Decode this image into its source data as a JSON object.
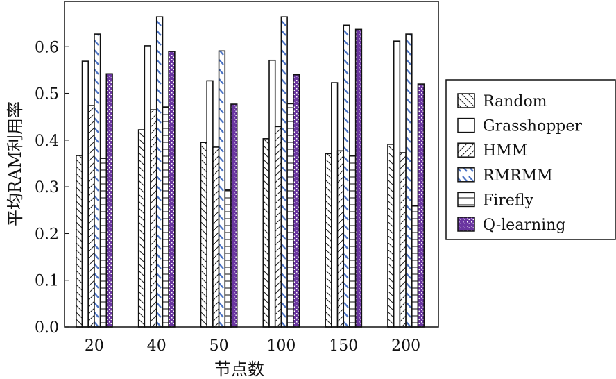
{
  "chart_data": {
    "type": "bar",
    "title": "",
    "xlabel": "节点数",
    "ylabel": "平均RAM利用率",
    "categories": [
      "20",
      "40",
      "50",
      "100",
      "150",
      "200"
    ],
    "ylim": [
      0,
      0.697
    ],
    "yticks": [
      "0.0",
      "0.1",
      "0.2",
      "0.3",
      "0.4",
      "0.5",
      "0.6"
    ],
    "grid": false,
    "legend_position": "right-outside",
    "series": [
      {
        "name": "Random",
        "pattern": "back-diagonal",
        "color": "#ffffff",
        "values": [
          0.367,
          0.422,
          0.395,
          0.403,
          0.371,
          0.391
        ]
      },
      {
        "name": "Grasshopper",
        "pattern": "none",
        "color": "#ffffff",
        "values": [
          0.569,
          0.602,
          0.527,
          0.571,
          0.523,
          0.612
        ]
      },
      {
        "name": "HMM",
        "pattern": "forward-diagonal",
        "color": "#ffffff",
        "values": [
          0.474,
          0.465,
          0.385,
          0.429,
          0.377,
          0.373
        ]
      },
      {
        "name": "RMRMM",
        "pattern": "blue-dashes",
        "color": "#4a72c4",
        "values": [
          0.627,
          0.664,
          0.591,
          0.664,
          0.646,
          0.627
        ]
      },
      {
        "name": "Firefly",
        "pattern": "horizontal",
        "color": "#ffffff",
        "values": [
          0.361,
          0.471,
          0.293,
          0.478,
          0.367,
          0.259
        ]
      },
      {
        "name": "Q-learning",
        "pattern": "purple-dots",
        "color": "#6a35a0",
        "values": [
          0.542,
          0.59,
          0.477,
          0.54,
          0.637,
          0.52
        ]
      }
    ]
  }
}
